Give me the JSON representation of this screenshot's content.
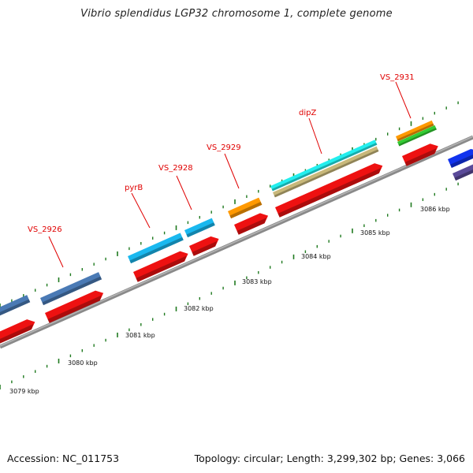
{
  "title": "Vibrio splendidus LGP32 chromosome 1, complete genome",
  "footer": {
    "accession": "Accession: NC_011753",
    "summary": "Topology: circular; Length: 3,299,302 bp; Genes: 3,066"
  },
  "axis": {
    "unit": "kbp",
    "ticks": [
      {
        "label": "3079 kbp"
      },
      {
        "label": "3080 kbp"
      },
      {
        "label": "3081 kbp"
      },
      {
        "label": "3082 kbp"
      },
      {
        "label": "3083 kbp"
      },
      {
        "label": "3084 kbp"
      },
      {
        "label": "3085 kbp"
      },
      {
        "label": "3086 kbp"
      }
    ]
  },
  "gene_labels": [
    {
      "name": "VS_2926"
    },
    {
      "name": "pyrB"
    },
    {
      "name": "VS_2928"
    },
    {
      "name": "VS_2929"
    },
    {
      "name": "dipZ"
    },
    {
      "name": "VS_2931"
    }
  ],
  "colors": {
    "cds": "#ee1111",
    "backbone": "#8a8a8a",
    "tick": "#1f7a1f",
    "label": "#e00000",
    "steelblue_feature": "#4a7ab5",
    "lightblue_feature": "#1ab8ef",
    "orange_feature": "#ff9900",
    "cyan_feature": "#22eeee",
    "khaki_feature": "#c8b87a",
    "green_feature": "#33cc33",
    "blue_feature": "#1133ee",
    "slate_feature": "#5a4a99"
  }
}
